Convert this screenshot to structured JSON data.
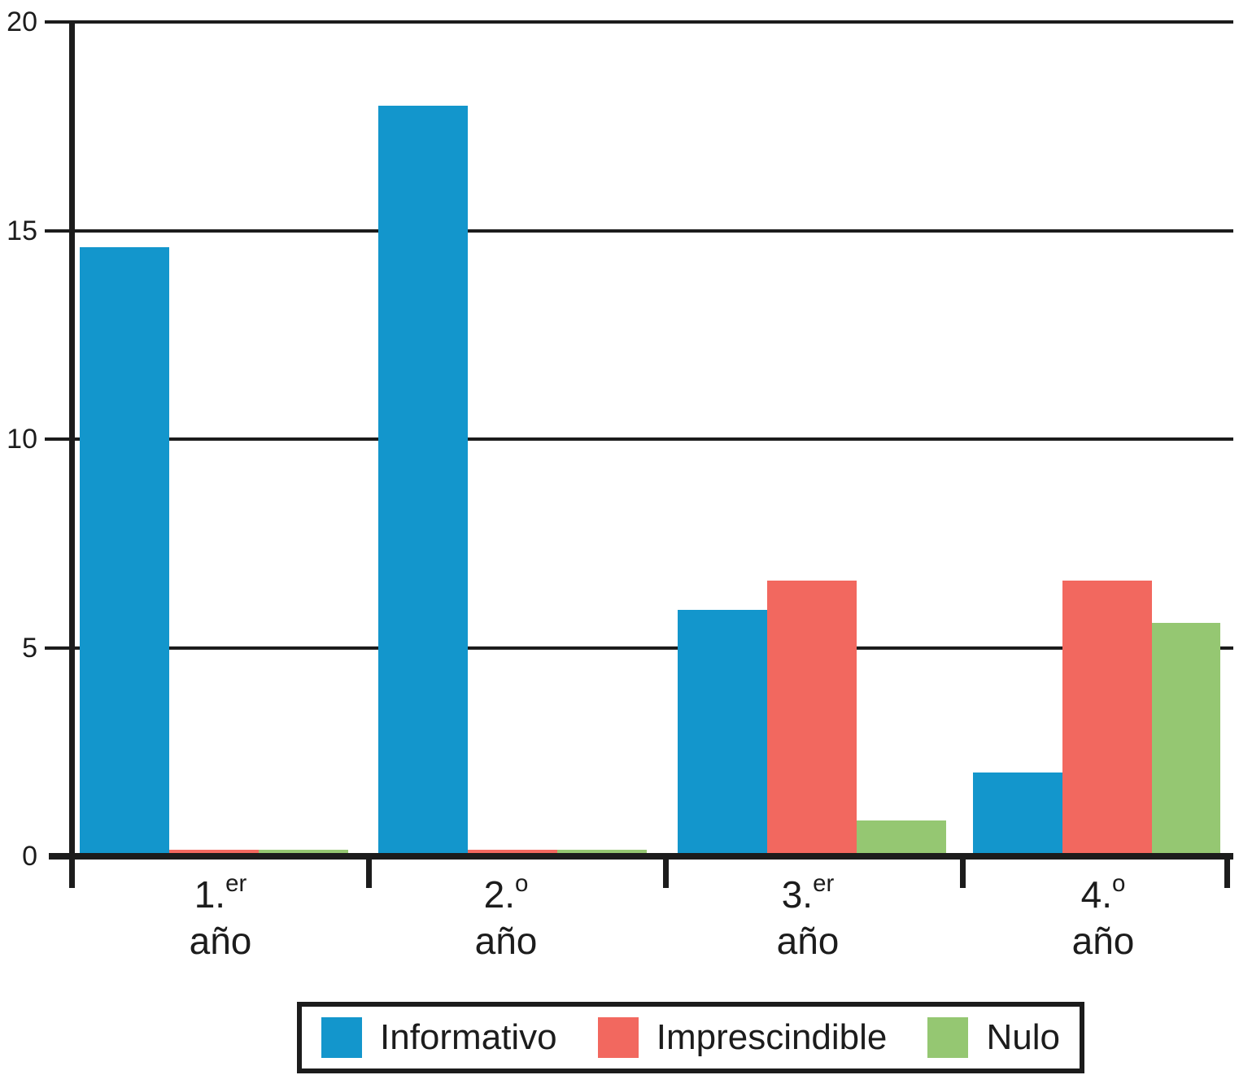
{
  "chart_data": {
    "type": "bar",
    "title": "",
    "xlabel": "",
    "ylabel": "",
    "categories": [
      {
        "label": "1.er año",
        "base": "1.",
        "sup": "er",
        "line2": "año"
      },
      {
        "label": "2.º año",
        "base": "2.",
        "sup": "o",
        "line2": "año"
      },
      {
        "label": "3.er año",
        "base": "3.",
        "sup": "er",
        "line2": "año"
      },
      {
        "label": "4.º año",
        "base": "4.",
        "sup": "o",
        "line2": "año"
      }
    ],
    "series": [
      {
        "name": "Informativo",
        "color": "#1396cc",
        "values": [
          14.6,
          18.0,
          5.9,
          2.0
        ]
      },
      {
        "name": "Imprescindible",
        "color": "#f2685f",
        "values": [
          0.15,
          0.15,
          6.6,
          6.6
        ]
      },
      {
        "name": "Nulo",
        "color": "#95c772",
        "values": [
          0.15,
          0.15,
          0.85,
          5.6
        ]
      }
    ],
    "ylim": [
      0,
      20
    ],
    "yticks": [
      0,
      5,
      10,
      15,
      20
    ],
    "grid": true,
    "legend_position": "bottom",
    "axis_color": "#1c1c1c",
    "background_color": "#ffffff"
  }
}
